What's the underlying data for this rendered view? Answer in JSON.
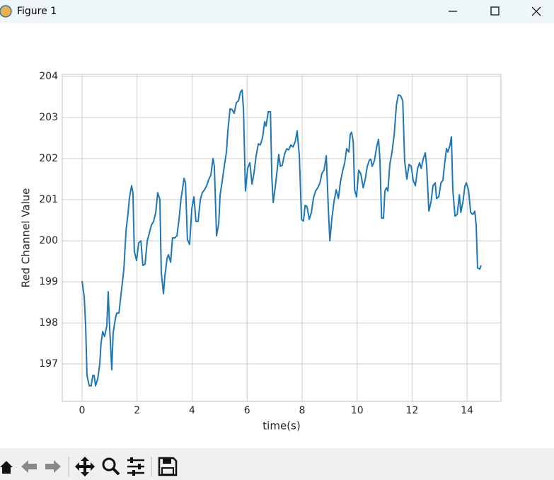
{
  "window": {
    "title": "Figure 1"
  },
  "chart_data": {
    "type": "line",
    "x_label": "time(s)",
    "y_label": "Red Channel Value",
    "color": "#1f77b4",
    "grid": true,
    "xlim": [
      -0.72,
      15.23
    ],
    "xticks": [
      0,
      2,
      4,
      6,
      8,
      10,
      12,
      14
    ],
    "ylim": [
      196.09,
      204.05
    ],
    "yticks": [
      197,
      198,
      199,
      200,
      201,
      202,
      203,
      204
    ],
    "x": [
      0,
      0.08,
      0.13,
      0.18,
      0.26,
      0.33,
      0.39,
      0.44,
      0.49,
      0.57,
      0.64,
      0.69,
      0.75,
      0.82,
      0.9,
      0.95,
      1,
      1.08,
      1.13,
      1.21,
      1.26,
      1.34,
      1.42,
      1.52,
      1.6,
      1.67,
      1.72,
      1.8,
      1.85,
      1.9,
      1.98,
      2.06,
      2.14,
      2.21,
      2.29,
      2.37,
      2.44,
      2.52,
      2.6,
      2.68,
      2.75,
      2.83,
      2.88,
      2.96,
      3.01,
      3.09,
      3.14,
      3.22,
      3.29,
      3.37,
      3.45,
      3.53,
      3.6,
      3.71,
      3.76,
      3.83,
      3.91,
      3.99,
      4.07,
      4.14,
      4.22,
      4.3,
      4.37,
      4.45,
      4.53,
      4.61,
      4.68,
      4.76,
      4.81,
      4.89,
      4.97,
      5.02,
      5.1,
      5.17,
      5.25,
      5.3,
      5.38,
      5.46,
      5.53,
      5.61,
      5.69,
      5.76,
      5.82,
      5.87,
      5.94,
      6.02,
      6.1,
      6.18,
      6.25,
      6.33,
      6.41,
      6.48,
      6.56,
      6.64,
      6.69,
      6.77,
      6.85,
      6.9,
      6.95,
      7.03,
      7.1,
      7.15,
      7.21,
      7.28,
      7.36,
      7.44,
      7.51,
      7.59,
      7.67,
      7.75,
      7.82,
      7.9,
      7.98,
      8.05,
      8.11,
      8.18,
      8.26,
      8.34,
      8.41,
      8.49,
      8.57,
      8.65,
      8.72,
      8.8,
      8.88,
      8.96,
      9.01,
      9.08,
      9.16,
      9.24,
      9.32,
      9.39,
      9.47,
      9.55,
      9.62,
      9.7,
      9.75,
      9.8,
      9.86,
      9.91,
      9.98,
      10.06,
      10.14,
      10.22,
      10.29,
      10.37,
      10.45,
      10.5,
      10.55,
      10.63,
      10.71,
      10.78,
      10.83,
      10.89,
      10.96,
      11.01,
      11.07,
      11.12,
      11.19,
      11.27,
      11.35,
      11.43,
      11.5,
      11.58,
      11.66,
      11.73,
      11.81,
      11.89,
      11.97,
      12.04,
      12.12,
      12.2,
      12.27,
      12.33,
      12.4,
      12.48,
      12.53,
      12.61,
      12.69,
      12.76,
      12.84,
      12.89,
      12.97,
      13.05,
      13.12,
      13.18,
      13.25,
      13.3,
      13.38,
      13.43,
      13.48,
      13.56,
      13.64,
      13.72,
      13.77,
      13.85,
      13.92,
      13.97,
      14.05,
      14.13,
      14.21,
      14.28,
      14.33,
      14.38,
      14.46,
      14.51
    ],
    "values": [
      199.02,
      198.62,
      197.93,
      196.72,
      196.47,
      196.47,
      196.72,
      196.72,
      196.47,
      196.64,
      196.98,
      197.5,
      197.79,
      197.67,
      197.93,
      198.76,
      197.93,
      196.86,
      197.76,
      198.1,
      198.24,
      198.24,
      198.71,
      199.31,
      200.26,
      200.66,
      201.03,
      201.34,
      201.17,
      199.74,
      199.52,
      199.95,
      200,
      199.4,
      199.43,
      200,
      200.17,
      200.38,
      200.47,
      200.69,
      201.17,
      201,
      199.22,
      198.71,
      199.14,
      199.57,
      199.66,
      199.48,
      200.07,
      200.07,
      200.12,
      200.55,
      201.03,
      201.52,
      201.41,
      200.03,
      199.91,
      200.78,
      201.07,
      200.47,
      200.47,
      201,
      201.17,
      201.24,
      201.34,
      201.5,
      201.59,
      202,
      201.81,
      200.12,
      200.43,
      201.12,
      201.47,
      201.81,
      202.16,
      202.67,
      203.21,
      203.19,
      203.1,
      203.36,
      203.41,
      203.62,
      203.67,
      203.19,
      201.21,
      201.76,
      201.9,
      201.38,
      201.64,
      202.07,
      202.36,
      202.33,
      202.5,
      202.9,
      202.79,
      203.14,
      203.14,
      201.55,
      200.93,
      201.34,
      201.76,
      202.1,
      201.81,
      201.84,
      202.1,
      202.24,
      202.21,
      202.33,
      202.28,
      202.41,
      202.67,
      202.07,
      200.52,
      200.48,
      200.86,
      200.83,
      200.52,
      200.69,
      201.03,
      201.21,
      201.29,
      201.41,
      201.64,
      201.72,
      202.07,
      200.69,
      200,
      200.52,
      200.95,
      201.24,
      201.03,
      201.41,
      201.69,
      201.9,
      202.24,
      202.16,
      202.59,
      202.64,
      202.41,
      201.24,
      201.07,
      201.72,
      201.62,
      201.29,
      201.47,
      201.81,
      201.97,
      201.98,
      201.81,
      201.95,
      202.28,
      202.47,
      201.98,
      200.55,
      200.55,
      201.21,
      201.29,
      201.21,
      201.86,
      202.16,
      202.59,
      203.31,
      203.55,
      203.53,
      203.41,
      201.93,
      201.5,
      201.86,
      201.81,
      201.47,
      201.34,
      201.76,
      201.9,
      201.76,
      201.98,
      202.14,
      201.81,
      200.72,
      200.95,
      201.34,
      201.41,
      201.03,
      201.07,
      201.41,
      201.47,
      201.86,
      202.24,
      202.16,
      202.33,
      202.53,
      201.24,
      200.6,
      200.64,
      201.12,
      200.69,
      200.95,
      201.33,
      201.41,
      201.24,
      200.69,
      200.64,
      200.72,
      200.38,
      199.34,
      199.31,
      199.4
    ]
  }
}
